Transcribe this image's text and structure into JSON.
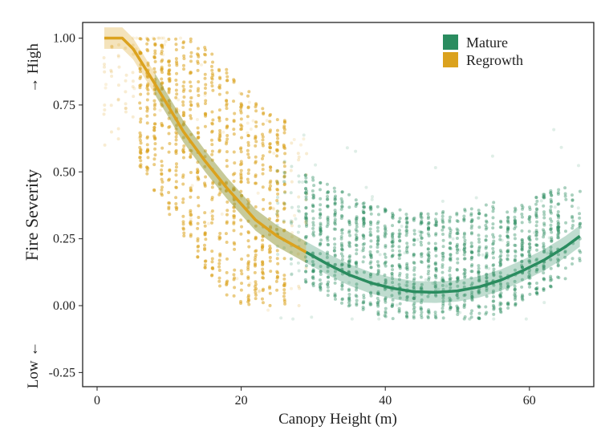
{
  "chart_data": {
    "type": "scatter",
    "title": "",
    "xlabel": "Canopy Height (m)",
    "ylabel": "Fire Severity",
    "ylabel_high": "→ High",
    "ylabel_low": "Low ←",
    "xlim": [
      -2,
      69
    ],
    "ylim": [
      -0.33,
      1.06
    ],
    "xticks": [
      0,
      20,
      40,
      60
    ],
    "xtick_labels": [
      "0",
      "20",
      "40",
      "60"
    ],
    "yticks": [
      1.0,
      0.75,
      0.5,
      0.25,
      0.0,
      -0.25
    ],
    "ytick_labels": [
      "1.00",
      "0.75",
      "0.50",
      "0.25",
      "0.00",
      "-0.25"
    ],
    "grid": false,
    "legend_position": "top-right",
    "series": [
      {
        "name": "Mature",
        "color": "#2a8c5f",
        "points_x_range": [
          25,
          67
        ],
        "points_y_range": [
          -0.05,
          0.55
        ],
        "fit": {
          "x": [
            8,
            10,
            12,
            15,
            18,
            20,
            22,
            25,
            29,
            32,
            35,
            38,
            41,
            44,
            47,
            50,
            53,
            56,
            59,
            62,
            65,
            67
          ],
          "y": [
            0.83,
            0.74,
            0.65,
            0.54,
            0.44,
            0.38,
            0.32,
            0.26,
            0.2,
            0.155,
            0.115,
            0.085,
            0.065,
            0.052,
            0.05,
            0.055,
            0.07,
            0.095,
            0.13,
            0.17,
            0.22,
            0.26
          ],
          "line_from_x": 29
        }
      },
      {
        "name": "Regrowth",
        "color": "#dba21e",
        "points_x_range": [
          1,
          29
        ],
        "points_y_range": [
          0.0,
          1.0
        ],
        "fit": {
          "x": [
            1,
            3.5,
            5,
            8,
            10,
            12,
            15,
            18,
            20,
            22,
            25,
            29
          ],
          "y": [
            1.0,
            1.0,
            0.96,
            0.83,
            0.74,
            0.65,
            0.54,
            0.44,
            0.38,
            0.32,
            0.26,
            0.2
          ],
          "line_from_x": 1
        }
      }
    ]
  }
}
